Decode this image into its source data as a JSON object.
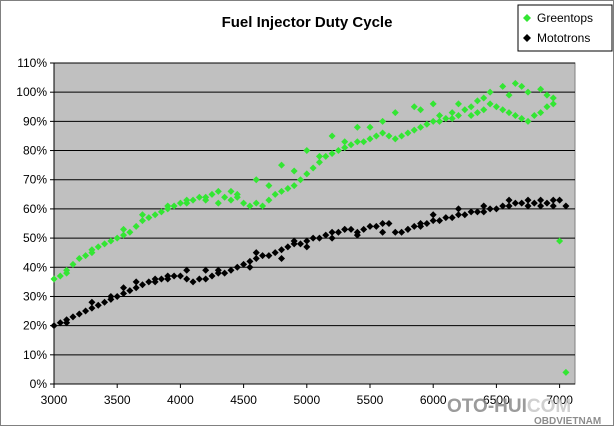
{
  "chart_data": {
    "type": "scatter",
    "title": "Fuel Injector Duty Cycle",
    "xlabel": "",
    "ylabel": "",
    "xlim": [
      3000,
      7000
    ],
    "ylim": [
      0,
      110
    ],
    "x_ticks": [
      "3000",
      "3500",
      "4000",
      "4500",
      "5000",
      "5500",
      "6000",
      "6500",
      "7000"
    ],
    "y_ticks": [
      "0%",
      "10%",
      "20%",
      "30%",
      "40%",
      "50%",
      "60%",
      "70%",
      "80%",
      "90%",
      "100%",
      "110%"
    ],
    "grid": "horizontal",
    "legend_position": "top-right",
    "series": [
      {
        "name": "Greentops",
        "color": "#33e633",
        "marker": "diamond",
        "points": [
          [
            3000,
            36
          ],
          [
            3050,
            37
          ],
          [
            3100,
            39
          ],
          [
            3150,
            41
          ],
          [
            3200,
            43
          ],
          [
            3250,
            44
          ],
          [
            3300,
            46
          ],
          [
            3350,
            47
          ],
          [
            3400,
            48
          ],
          [
            3450,
            49
          ],
          [
            3500,
            50
          ],
          [
            3550,
            51
          ],
          [
            3600,
            52
          ],
          [
            3650,
            54
          ],
          [
            3700,
            56
          ],
          [
            3750,
            57
          ],
          [
            3800,
            58
          ],
          [
            3850,
            59
          ],
          [
            3900,
            60
          ],
          [
            3950,
            61
          ],
          [
            4000,
            62
          ],
          [
            4050,
            62
          ],
          [
            4100,
            63
          ],
          [
            4150,
            64
          ],
          [
            4200,
            63
          ],
          [
            4250,
            65
          ],
          [
            4300,
            66
          ],
          [
            4350,
            64
          ],
          [
            4400,
            63
          ],
          [
            4450,
            65
          ],
          [
            4500,
            62
          ],
          [
            4550,
            61
          ],
          [
            4600,
            62
          ],
          [
            4650,
            61
          ],
          [
            4700,
            63
          ],
          [
            4750,
            65
          ],
          [
            4800,
            66
          ],
          [
            4850,
            67
          ],
          [
            4900,
            68
          ],
          [
            4950,
            70
          ],
          [
            5000,
            72
          ],
          [
            5050,
            74
          ],
          [
            5100,
            76
          ],
          [
            5150,
            78
          ],
          [
            5200,
            79
          ],
          [
            5250,
            80
          ],
          [
            5300,
            81
          ],
          [
            5350,
            82
          ],
          [
            5400,
            83
          ],
          [
            5450,
            83
          ],
          [
            5500,
            84
          ],
          [
            5550,
            85
          ],
          [
            5600,
            86
          ],
          [
            5650,
            85
          ],
          [
            5700,
            84
          ],
          [
            5750,
            85
          ],
          [
            5800,
            86
          ],
          [
            5850,
            87
          ],
          [
            5900,
            88
          ],
          [
            5950,
            89
          ],
          [
            6000,
            90
          ],
          [
            6050,
            90
          ],
          [
            6100,
            91
          ],
          [
            6150,
            91
          ],
          [
            6200,
            92
          ],
          [
            6250,
            94
          ],
          [
            6300,
            95
          ],
          [
            6350,
            93
          ],
          [
            6400,
            94
          ],
          [
            6450,
            96
          ],
          [
            6500,
            95
          ],
          [
            6550,
            94
          ],
          [
            6600,
            93
          ],
          [
            6650,
            92
          ],
          [
            6700,
            91
          ],
          [
            6750,
            90
          ],
          [
            6800,
            92
          ],
          [
            6850,
            93
          ],
          [
            6900,
            95
          ],
          [
            6950,
            96
          ],
          [
            3100,
            38
          ],
          [
            3300,
            45
          ],
          [
            3550,
            53
          ],
          [
            3900,
            61
          ],
          [
            4050,
            63
          ],
          [
            4300,
            62
          ],
          [
            4450,
            64
          ],
          [
            4700,
            68
          ],
          [
            4900,
            73
          ],
          [
            5100,
            78
          ],
          [
            5300,
            83
          ],
          [
            5500,
            88
          ],
          [
            5700,
            93
          ],
          [
            5850,
            95
          ],
          [
            6050,
            92
          ],
          [
            6200,
            96
          ],
          [
            6350,
            97
          ],
          [
            6450,
            100
          ],
          [
            6550,
            102
          ],
          [
            6650,
            103
          ],
          [
            6700,
            102
          ],
          [
            6750,
            100
          ],
          [
            6850,
            101
          ],
          [
            6900,
            99
          ],
          [
            6950,
            98
          ],
          [
            6000,
            96
          ],
          [
            6150,
            93
          ],
          [
            6300,
            92
          ],
          [
            6400,
            98
          ],
          [
            6600,
            99
          ],
          [
            5900,
            94
          ],
          [
            5600,
            90
          ],
          [
            5400,
            88
          ],
          [
            5200,
            85
          ],
          [
            5000,
            80
          ],
          [
            4800,
            75
          ],
          [
            4600,
            70
          ],
          [
            4400,
            66
          ],
          [
            4200,
            64
          ],
          [
            3700,
            58
          ],
          [
            7000,
            49
          ],
          [
            7050,
            4
          ]
        ]
      },
      {
        "name": "Mototrons",
        "color": "#000000",
        "marker": "diamond",
        "points": [
          [
            3000,
            20
          ],
          [
            3050,
            21
          ],
          [
            3100,
            22
          ],
          [
            3150,
            23
          ],
          [
            3200,
            24
          ],
          [
            3250,
            25
          ],
          [
            3300,
            26
          ],
          [
            3350,
            27
          ],
          [
            3400,
            28
          ],
          [
            3450,
            29
          ],
          [
            3500,
            30
          ],
          [
            3550,
            31
          ],
          [
            3600,
            32
          ],
          [
            3650,
            33
          ],
          [
            3700,
            34
          ],
          [
            3750,
            35
          ],
          [
            3800,
            35
          ],
          [
            3850,
            36
          ],
          [
            3900,
            36
          ],
          [
            3950,
            37
          ],
          [
            4000,
            37
          ],
          [
            4050,
            36
          ],
          [
            4100,
            35
          ],
          [
            4150,
            36
          ],
          [
            4200,
            36
          ],
          [
            4250,
            37
          ],
          [
            4300,
            38
          ],
          [
            4350,
            38
          ],
          [
            4400,
            39
          ],
          [
            4450,
            40
          ],
          [
            4500,
            41
          ],
          [
            4550,
            42
          ],
          [
            4600,
            43
          ],
          [
            4650,
            44
          ],
          [
            4700,
            44
          ],
          [
            4750,
            45
          ],
          [
            4800,
            46
          ],
          [
            4850,
            47
          ],
          [
            4900,
            48
          ],
          [
            4950,
            48
          ],
          [
            5000,
            49
          ],
          [
            5050,
            50
          ],
          [
            5100,
            50
          ],
          [
            5150,
            51
          ],
          [
            5200,
            52
          ],
          [
            5250,
            52
          ],
          [
            5300,
            53
          ],
          [
            5350,
            53
          ],
          [
            5400,
            52
          ],
          [
            5450,
            53
          ],
          [
            5500,
            54
          ],
          [
            5550,
            54
          ],
          [
            5600,
            55
          ],
          [
            5650,
            55
          ],
          [
            5700,
            52
          ],
          [
            5750,
            52
          ],
          [
            5800,
            53
          ],
          [
            5850,
            54
          ],
          [
            5900,
            55
          ],
          [
            5950,
            55
          ],
          [
            6000,
            56
          ],
          [
            6050,
            56
          ],
          [
            6100,
            57
          ],
          [
            6150,
            57
          ],
          [
            6200,
            58
          ],
          [
            6250,
            58
          ],
          [
            6300,
            59
          ],
          [
            6350,
            59
          ],
          [
            6400,
            59
          ],
          [
            6450,
            60
          ],
          [
            6500,
            60
          ],
          [
            6550,
            61
          ],
          [
            6600,
            61
          ],
          [
            6650,
            62
          ],
          [
            6700,
            62
          ],
          [
            6750,
            61
          ],
          [
            6800,
            62
          ],
          [
            6850,
            61
          ],
          [
            6900,
            62
          ],
          [
            6950,
            61
          ],
          [
            3100,
            21
          ],
          [
            3300,
            28
          ],
          [
            3550,
            33
          ],
          [
            3800,
            36
          ],
          [
            4050,
            39
          ],
          [
            4300,
            39
          ],
          [
            4550,
            40
          ],
          [
            4800,
            43
          ],
          [
            5000,
            47
          ],
          [
            5200,
            50
          ],
          [
            5400,
            51
          ],
          [
            5600,
            52
          ],
          [
            5800,
            53
          ],
          [
            6000,
            58
          ],
          [
            6200,
            60
          ],
          [
            6400,
            61
          ],
          [
            6600,
            63
          ],
          [
            6750,
            63
          ],
          [
            6850,
            63
          ],
          [
            6950,
            63
          ],
          [
            7000,
            63
          ],
          [
            7050,
            61
          ],
          [
            5900,
            54
          ],
          [
            5300,
            53
          ],
          [
            4900,
            49
          ],
          [
            4600,
            45
          ],
          [
            4200,
            39
          ],
          [
            3900,
            37
          ],
          [
            3650,
            35
          ],
          [
            3450,
            30
          ]
        ]
      }
    ]
  },
  "watermark": {
    "line1_part1": "OTO-HUI",
    "line1_part2": "COM",
    "line2": "OBDVIETNAM"
  }
}
